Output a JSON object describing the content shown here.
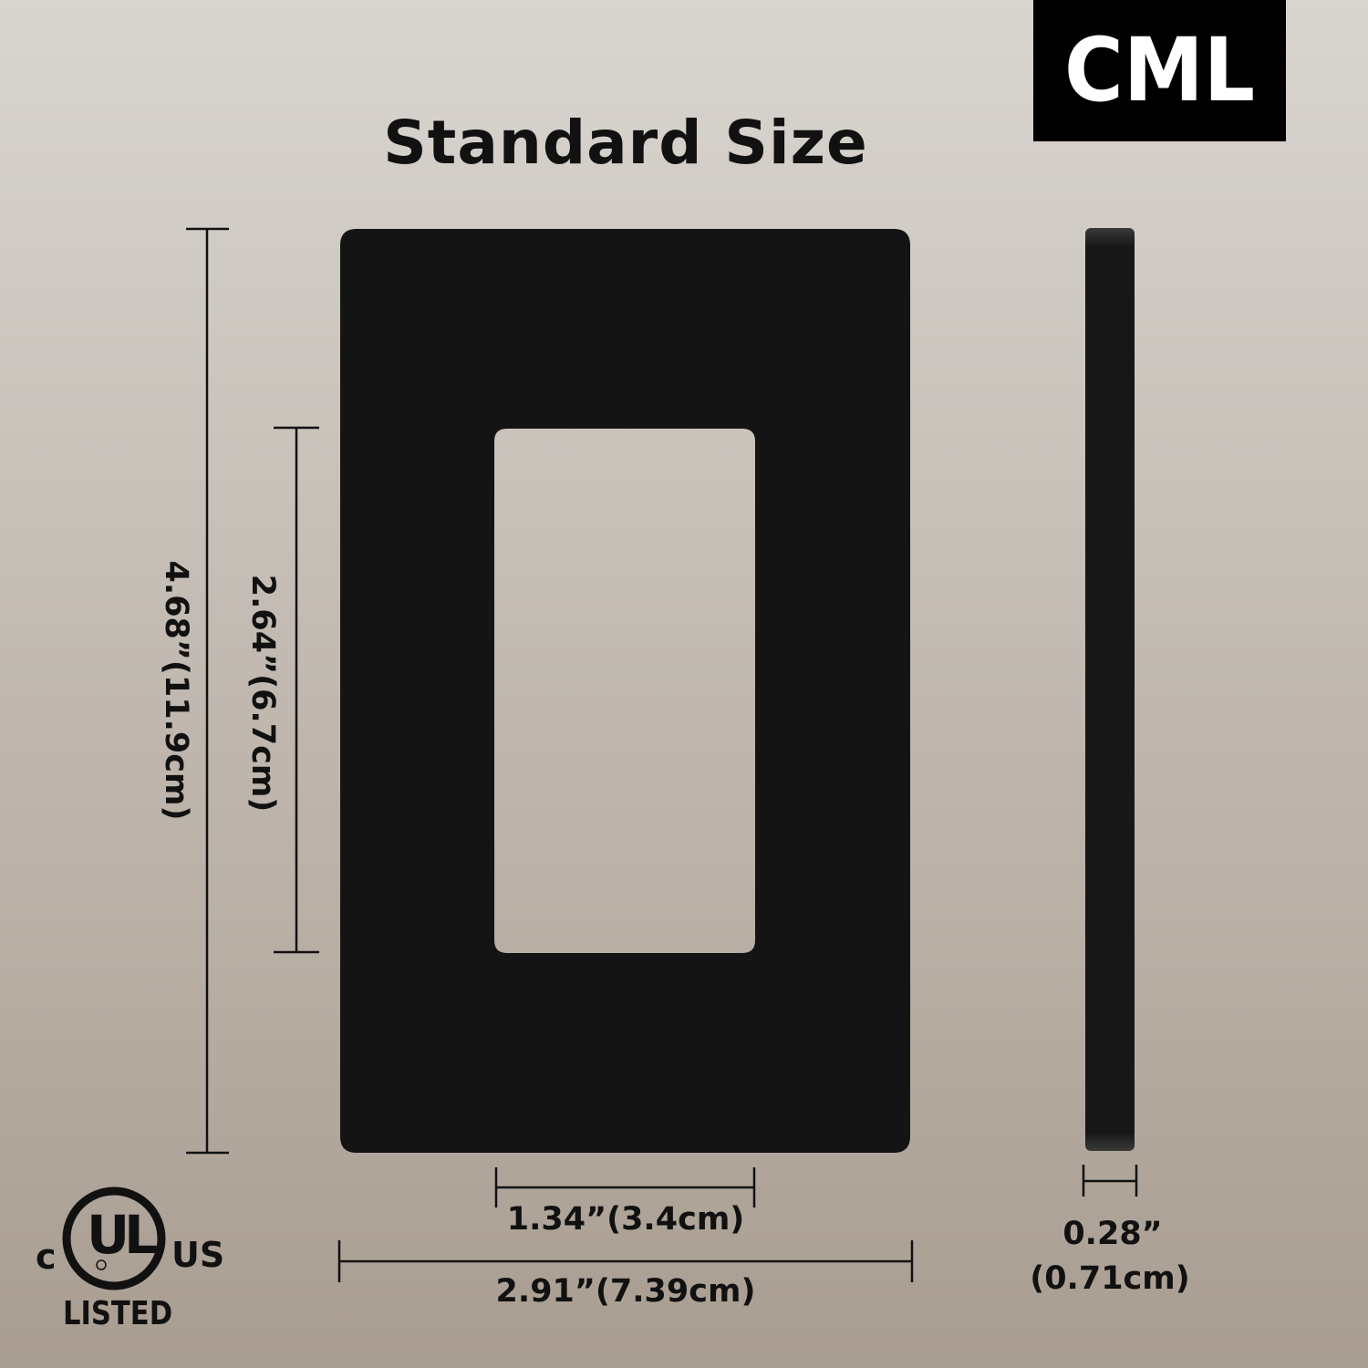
{
  "brand": {
    "label": "CML"
  },
  "title": "Standard Size",
  "dimensions": {
    "height": "4.68”(11.9cm)",
    "opening_height": "2.64”(6.7cm)",
    "opening_width": "1.34”(3.4cm)",
    "width": "2.91”(7.39cm)",
    "thickness_in": "0.28”",
    "thickness_cm": "(0.71cm)"
  },
  "certification": {
    "c": "c",
    "ul": "UL",
    "us": "US",
    "listed": "LISTED"
  },
  "colors": {
    "plate": "#141414",
    "background_top": "#d9d5d0",
    "background_bottom": "#a99d91"
  }
}
